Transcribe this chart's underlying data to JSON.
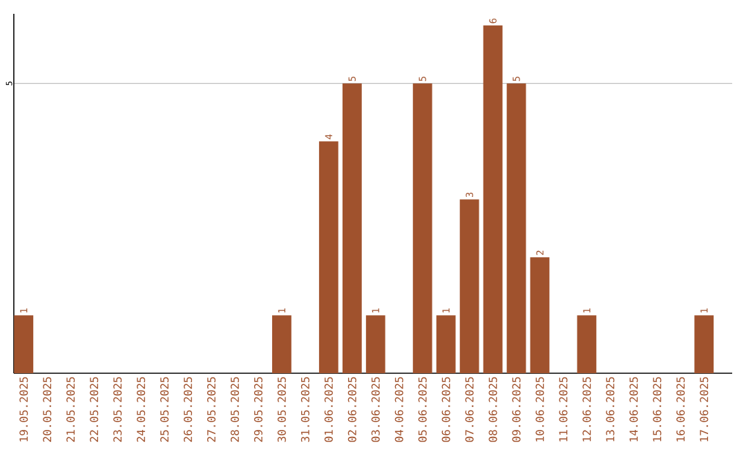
{
  "chart_data": {
    "type": "bar",
    "categories": [
      "19.05.2025",
      "20.05.2025",
      "21.05.2025",
      "22.05.2025",
      "23.05.2025",
      "24.05.2025",
      "25.05.2025",
      "26.05.2025",
      "27.05.2025",
      "28.05.2025",
      "29.05.2025",
      "30.05.2025",
      "31.05.2025",
      "01.06.2025",
      "02.06.2025",
      "03.06.2025",
      "04.06.2025",
      "05.06.2025",
      "06.06.2025",
      "07.06.2025",
      "08.06.2025",
      "09.06.2025",
      "10.06.2025",
      "11.06.2025",
      "12.06.2025",
      "13.06.2025",
      "14.06.2025",
      "15.06.2025",
      "16.06.2025",
      "17.06.2025"
    ],
    "values": [
      1,
      0,
      0,
      0,
      0,
      0,
      0,
      0,
      0,
      0,
      0,
      1,
      0,
      4,
      5,
      1,
      0,
      5,
      1,
      3,
      6,
      5,
      2,
      0,
      1,
      0,
      0,
      0,
      0,
      1
    ],
    "value_labels": [
      "1",
      null,
      null,
      null,
      null,
      null,
      null,
      null,
      null,
      null,
      null,
      "1",
      null,
      "4",
      "5",
      "1",
      null,
      "5",
      "1",
      "3",
      "6",
      "5",
      "2",
      null,
      "1",
      null,
      null,
      null,
      null,
      "1"
    ],
    "color": "#a0522d",
    "ylim": [
      0,
      6.2
    ],
    "yticks": [
      5
    ],
    "grid": "y"
  }
}
